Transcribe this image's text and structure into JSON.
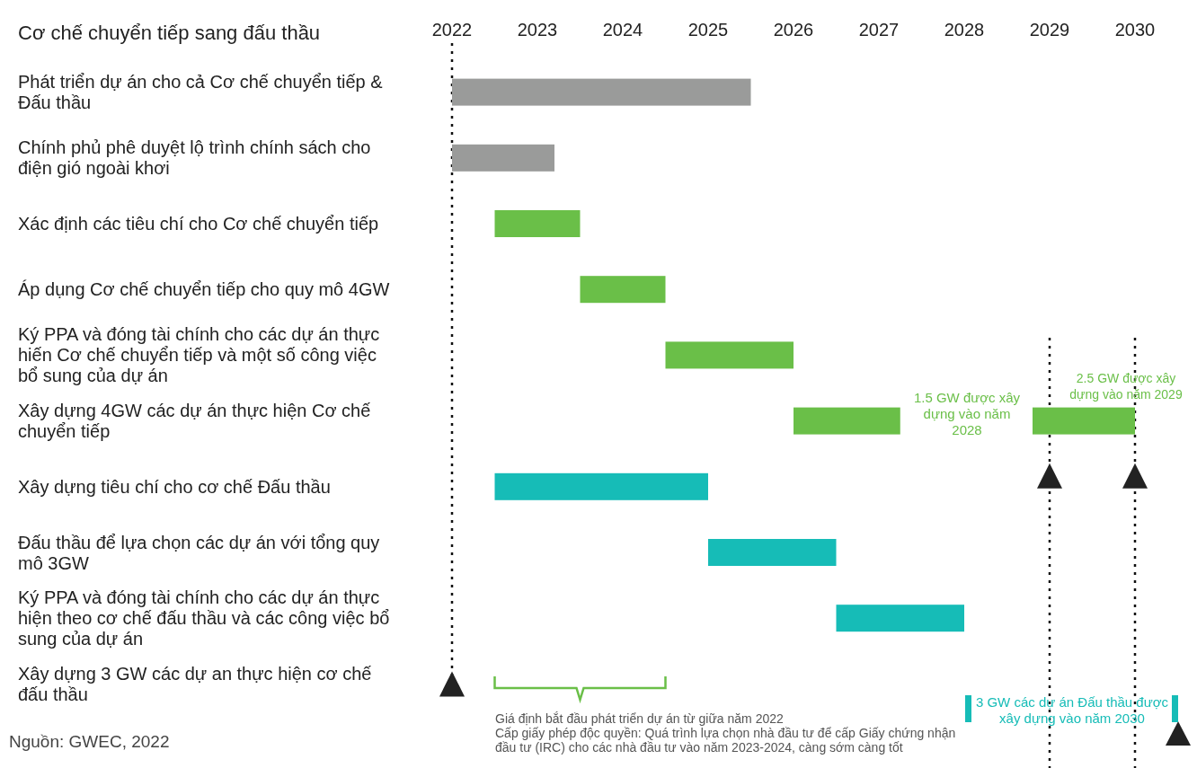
{
  "chart_data": {
    "type": "bar",
    "orientation": "horizontal",
    "title": "Cơ chế chuyển tiếp sang đấu thầu",
    "categories": [
      "Phát triển dự án cho cả Cơ chế chuyển tiếp & Đấu thầu",
      "Chính phủ phê duyệt lộ trình chính sách cho điện gió ngoài khơi",
      "Xác định các tiêu chí cho Cơ chế chuyển tiếp",
      "Áp dụng Cơ chế chuyển tiếp cho quy mô 4GW",
      "Ký PPA và đóng tài chính cho các dự án thực hiến Cơ chế chuyển tiếp và một số công việc bổ sung của dự án",
      "Xây dựng 4GW các dự án thực hiện Cơ chế chuyển tiếp",
      "Xây dựng tiêu chí cho cơ chế Đấu thầu",
      "Đấu thầu để lựa chọn các dự án với tổng quy mô 3GW",
      "Ký PPA và đóng tài chính cho các dự án thực hiện theo cơ chế đấu thầu và các công việc bổ sung của dự án",
      "Xây dựng 3 GW các dự an thực hiện cơ chế đấu thầu"
    ],
    "series": [
      {
        "color": "#9a9b9a",
        "values": [
          3.5,
          1.2,
          null,
          null,
          null,
          null,
          null,
          null,
          null,
          null
        ],
        "base": [
          2022,
          2022,
          null,
          null,
          null,
          null,
          null,
          null,
          null,
          null
        ]
      },
      {
        "color": "#6abf48",
        "values": [
          null,
          null,
          1,
          1,
          1.5,
          1.25,
          null,
          null,
          null,
          null
        ],
        "base": [
          null,
          null,
          2022.5,
          2023.5,
          2024.5,
          2026,
          null,
          null,
          null,
          null
        ]
      },
      {
        "color": "#6abf48",
        "values": [
          null,
          null,
          null,
          null,
          null,
          1.2,
          null,
          null,
          null,
          null
        ],
        "base": [
          null,
          null,
          null,
          null,
          null,
          2028.8,
          null,
          null,
          null,
          null
        ]
      },
      {
        "color": "#16bcb7",
        "values": [
          null,
          null,
          null,
          null,
          null,
          null,
          2.5,
          1.5,
          1.5,
          null
        ],
        "base": [
          null,
          null,
          null,
          null,
          null,
          null,
          2022.5,
          2025,
          2026.5,
          null
        ]
      }
    ],
    "xlim": [
      2022,
      2030
    ],
    "xticks": [
      2022,
      2023,
      2024,
      2025,
      2026,
      2027,
      2028,
      2029,
      2030
    ],
    "ref_lines": [
      {
        "axis": "x",
        "value": 2022,
        "line_style": "dotted"
      },
      {
        "axis": "x",
        "value": 2029,
        "line_style": "dotted"
      },
      {
        "axis": "x",
        "value": 2030,
        "line_style": "dotted"
      }
    ],
    "annotations": [
      "1.5 GW được xây dựng vào năm 2028",
      "2.5 GW được xây dựng vào năm 2029",
      "3 GW các dự án Đấu thầu được xây dựng vào năm 2030",
      "Giá định bắt đầu phát triển dự án từ giữa năm 2022",
      "Cấp giấy phép độc quyền: Quá trình lựa chọn nhà đầu tư để cấp Giấy chứng nhận đầu tư (IRC) cho các nhà đầu tư vào năm 2023-2024, càng sớm càng tốt",
      "Nguồn: GWEC, 2022"
    ]
  }
}
